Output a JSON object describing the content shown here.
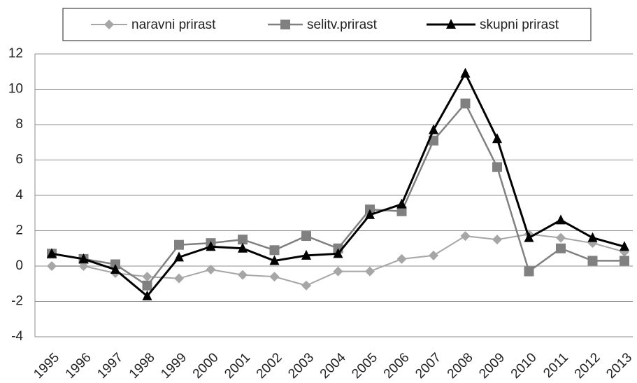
{
  "chart_data": {
    "type": "line",
    "categories": [
      "1995",
      "1996",
      "1997",
      "1998",
      "1999",
      "2000",
      "2001",
      "2002",
      "2003",
      "2004",
      "2005",
      "2006",
      "2007",
      "2008",
      "2009",
      "2010",
      "2011",
      "2012",
      "2013"
    ],
    "series": [
      {
        "name": "naravni prirast",
        "color": "#a6a6a6",
        "marker": "diamond",
        "values": [
          0,
          0,
          -0.4,
          -0.6,
          -0.7,
          -0.2,
          -0.5,
          -0.6,
          -1.1,
          -0.3,
          -0.3,
          0.4,
          0.6,
          1.7,
          1.5,
          1.8,
          1.6,
          1.3,
          0.8
        ]
      },
      {
        "name": "selitv.prirast",
        "color": "#808080",
        "marker": "square",
        "values": [
          0.7,
          0.4,
          0.1,
          -1.1,
          1.2,
          1.3,
          1.5,
          0.9,
          1.7,
          1.0,
          3.2,
          3.1,
          7.1,
          9.2,
          5.6,
          -0.3,
          1.0,
          0.3,
          0.3
        ]
      },
      {
        "name": "skupni prirast",
        "color": "#000000",
        "marker": "triangle",
        "values": [
          0.7,
          0.4,
          -0.2,
          -1.7,
          0.5,
          1.1,
          1.0,
          0.3,
          0.6,
          0.7,
          2.9,
          3.5,
          7.7,
          10.9,
          7.2,
          1.6,
          2.6,
          1.6,
          1.1
        ]
      }
    ],
    "ylim": [
      -4,
      12
    ],
    "yticks": [
      -4,
      -2,
      0,
      2,
      4,
      6,
      8,
      10,
      12
    ],
    "grid": true,
    "legend": "top"
  }
}
